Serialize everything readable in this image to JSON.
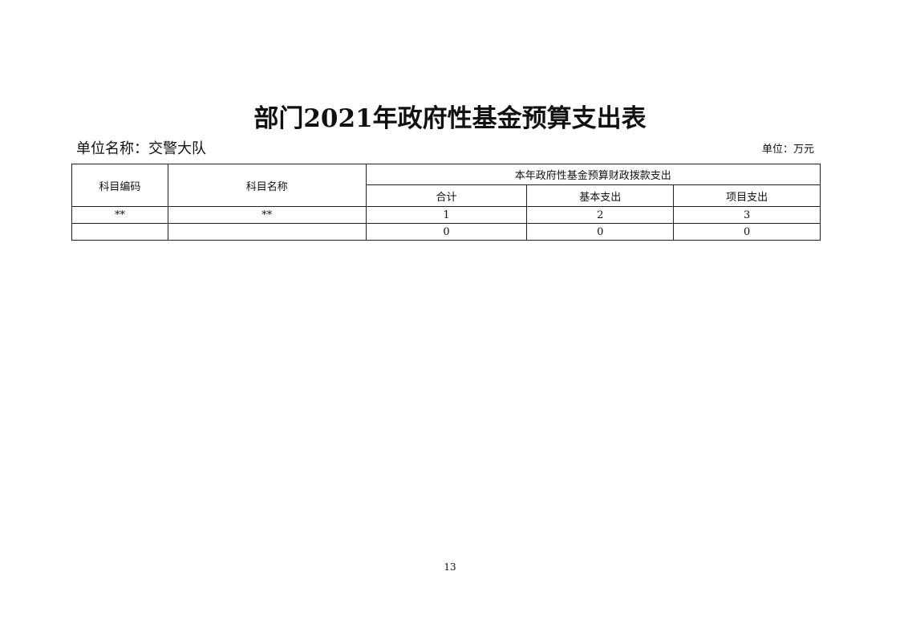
{
  "title": "部门2021年政府性基金预算支出表",
  "unit_name": "单位名称：交警大队",
  "unit": "单位：万元",
  "table": {
    "col_code": "科目编码",
    "col_name": "科目名称",
    "group_header": "本年政府性基金预算财政拨款支出",
    "sub_headers": [
      "合计",
      "基本支出",
      "项目支出"
    ],
    "rows": [
      [
        "**",
        "**",
        "1",
        "2",
        "3"
      ],
      [
        "",
        "",
        "0",
        "0",
        "0"
      ]
    ]
  },
  "page_number": "13"
}
